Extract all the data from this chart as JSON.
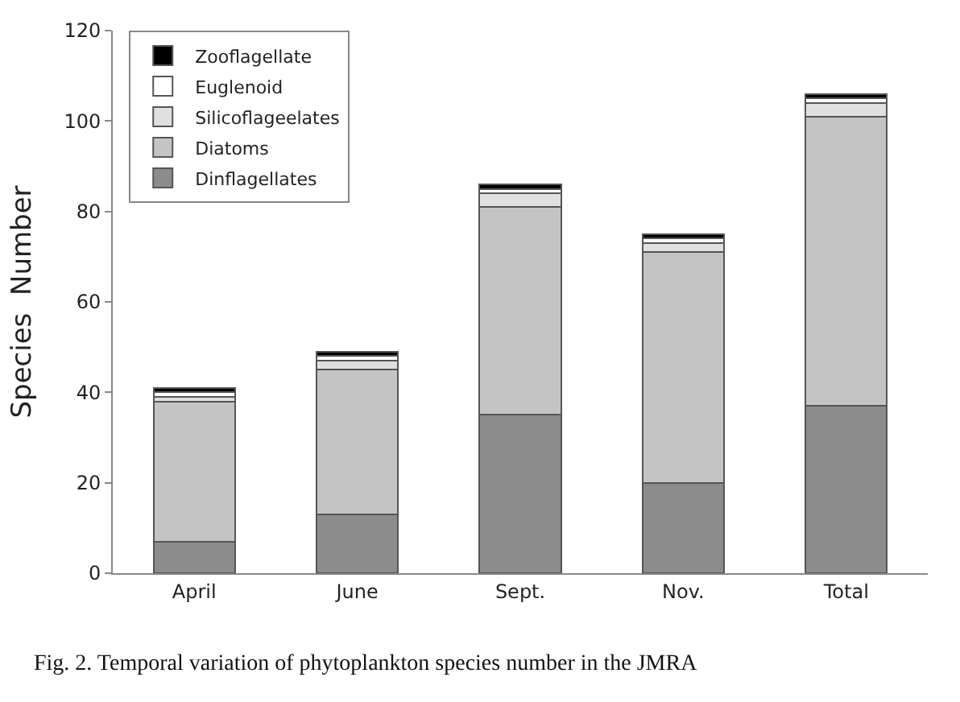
{
  "chart_data": {
    "type": "bar",
    "stacked": true,
    "ylabel": "Species  Number",
    "categories": [
      "April",
      "June",
      "Sept.",
      "Nov.",
      "Total"
    ],
    "series": [
      {
        "name": "Dinflagellates",
        "color": "#8c8c8c",
        "values": [
          7,
          13,
          35,
          20,
          37
        ]
      },
      {
        "name": "Diatoms",
        "color": "#c4c4c4",
        "values": [
          31,
          32,
          46,
          51,
          64
        ]
      },
      {
        "name": "Silicoflageelates",
        "color": "#e0e0e0",
        "values": [
          1,
          2,
          3,
          2,
          3
        ]
      },
      {
        "name": "Euglenoid",
        "color": "#ffffff",
        "values": [
          1,
          1,
          1,
          1,
          1
        ]
      },
      {
        "name": "Zooflagellate",
        "color": "#000000",
        "values": [
          1,
          1,
          1,
          1,
          1
        ]
      }
    ],
    "ylim": [
      0,
      120
    ],
    "yticks": [
      0,
      20,
      40,
      60,
      80,
      100,
      120
    ],
    "legend": "top left",
    "annotations": [
      "Fig. 2. Temporal variation of phytoplankton species number in the JMRA"
    ]
  }
}
